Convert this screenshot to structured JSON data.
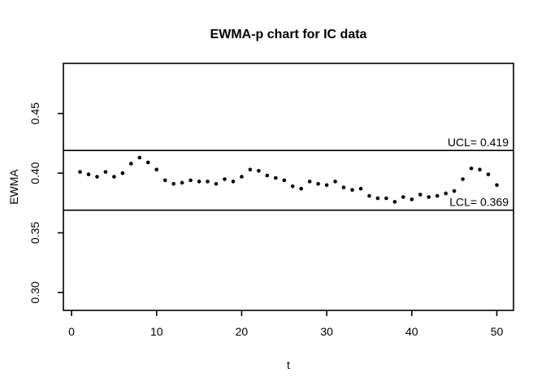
{
  "figure": {
    "title": "EWMA-p chart for IC data",
    "x_axis_label": "t",
    "y_axis_label": "EWMA",
    "ucl_label": "UCL= 0.419",
    "lcl_label": "LCL= 0.369",
    "background_color": "#ffffff",
    "foreground_color": "#000000"
  },
  "chart_data": {
    "type": "scatter",
    "title": "EWMA-p chart for IC data",
    "xlabel": "t",
    "ylabel": "EWMA",
    "grid": false,
    "legend_position": "none",
    "point_style": "filled-circle",
    "point_color": "#000000",
    "line_color": "#000000",
    "xlim": [
      -0.96,
      51.96
    ],
    "ylim": [
      0.285,
      0.492
    ],
    "x_ticks": [
      0,
      10,
      20,
      30,
      40,
      50
    ],
    "x_tick_labels": [
      "0",
      "10",
      "20",
      "30",
      "40",
      "50"
    ],
    "y_ticks": [
      0.3,
      0.35,
      0.4,
      0.45
    ],
    "y_tick_labels": [
      "0.30",
      "0.35",
      "0.40",
      "0.45"
    ],
    "ucl": 0.419,
    "lcl": 0.369,
    "ucl_label": "UCL= 0.419",
    "lcl_label": "LCL= 0.369",
    "x": [
      1,
      2,
      3,
      4,
      5,
      6,
      7,
      8,
      9,
      10,
      11,
      12,
      13,
      14,
      15,
      16,
      17,
      18,
      19,
      20,
      21,
      22,
      23,
      24,
      25,
      26,
      27,
      28,
      29,
      30,
      31,
      32,
      33,
      34,
      35,
      36,
      37,
      38,
      39,
      40,
      41,
      42,
      43,
      44,
      45,
      46,
      47,
      48,
      49,
      50
    ],
    "y": [
      0.401,
      0.399,
      0.397,
      0.401,
      0.397,
      0.4,
      0.408,
      0.413,
      0.409,
      0.403,
      0.394,
      0.391,
      0.392,
      0.394,
      0.393,
      0.393,
      0.391,
      0.395,
      0.393,
      0.397,
      0.403,
      0.402,
      0.398,
      0.396,
      0.394,
      0.389,
      0.387,
      0.393,
      0.391,
      0.39,
      0.393,
      0.388,
      0.386,
      0.387,
      0.381,
      0.379,
      0.379,
      0.376,
      0.38,
      0.378,
      0.382,
      0.38,
      0.381,
      0.383,
      0.385,
      0.395,
      0.404,
      0.403,
      0.399,
      0.39
    ]
  }
}
